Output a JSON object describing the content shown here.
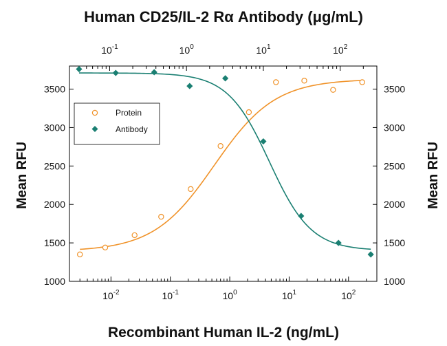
{
  "chart_data": {
    "type": "scatter",
    "title": "Human CD25/IL-2 Rα Antibody (μg/mL)",
    "xlabel": "Recombinant Human IL-2 (ng/mL)",
    "ylabel_left": "Mean RFU",
    "ylabel_right": "Mean RFU",
    "x_scale": "log",
    "xlim_bottom": [
      0.002,
      300
    ],
    "xlim_top": [
      0.03,
      300
    ],
    "ylim": [
      1000,
      3800
    ],
    "yticks": [
      "1000",
      "1500",
      "2000",
      "2500",
      "3000",
      "3500"
    ],
    "ytick_values": [
      1000,
      1500,
      2000,
      2500,
      3000,
      3500
    ],
    "xticks_bottom": [
      {
        "base": "10",
        "exp": "-2",
        "value": 0.01
      },
      {
        "base": "10",
        "exp": "-1",
        "value": 0.1
      },
      {
        "base": "10",
        "exp": "0",
        "value": 1
      },
      {
        "base": "10",
        "exp": "1",
        "value": 10
      },
      {
        "base": "10",
        "exp": "2",
        "value": 100
      }
    ],
    "xticks_top": [
      {
        "base": "10",
        "exp": "-1",
        "value": 0.1
      },
      {
        "base": "10",
        "exp": "0",
        "value": 1
      },
      {
        "base": "10",
        "exp": "1",
        "value": 10
      },
      {
        "base": "10",
        "exp": "2",
        "value": 100
      }
    ],
    "legend": {
      "position": "top-left",
      "entries": [
        "Protein",
        "Antibody"
      ]
    },
    "colors": {
      "protein": "#f0932a",
      "antibody": "#1a7f72"
    },
    "series": [
      {
        "name": "Protein",
        "axis": "bottom",
        "marker": "open-circle",
        "x": [
          0.003,
          0.008,
          0.025,
          0.07,
          0.22,
          0.7,
          2.1,
          6,
          18,
          55,
          170
        ],
        "y": [
          1350,
          1440,
          1600,
          1840,
          2200,
          2760,
          3200,
          3590,
          3610,
          3490,
          3590
        ],
        "fit": {
          "bottom": 1390,
          "top": 3630,
          "ec50": 0.55,
          "hill": 0.85
        }
      },
      {
        "name": "Antibody",
        "axis": "top",
        "marker": "filled-diamond",
        "x": [
          0.04,
          0.12,
          0.38,
          1.1,
          3.2,
          10,
          31,
          95,
          250
        ],
        "y": [
          3760,
          3710,
          3720,
          3540,
          3640,
          2820,
          1850,
          1500,
          1350
        ],
        "fit": {
          "bottom": 1400,
          "top": 3710,
          "ec50": 12,
          "hill": 1.6
        }
      }
    ]
  }
}
